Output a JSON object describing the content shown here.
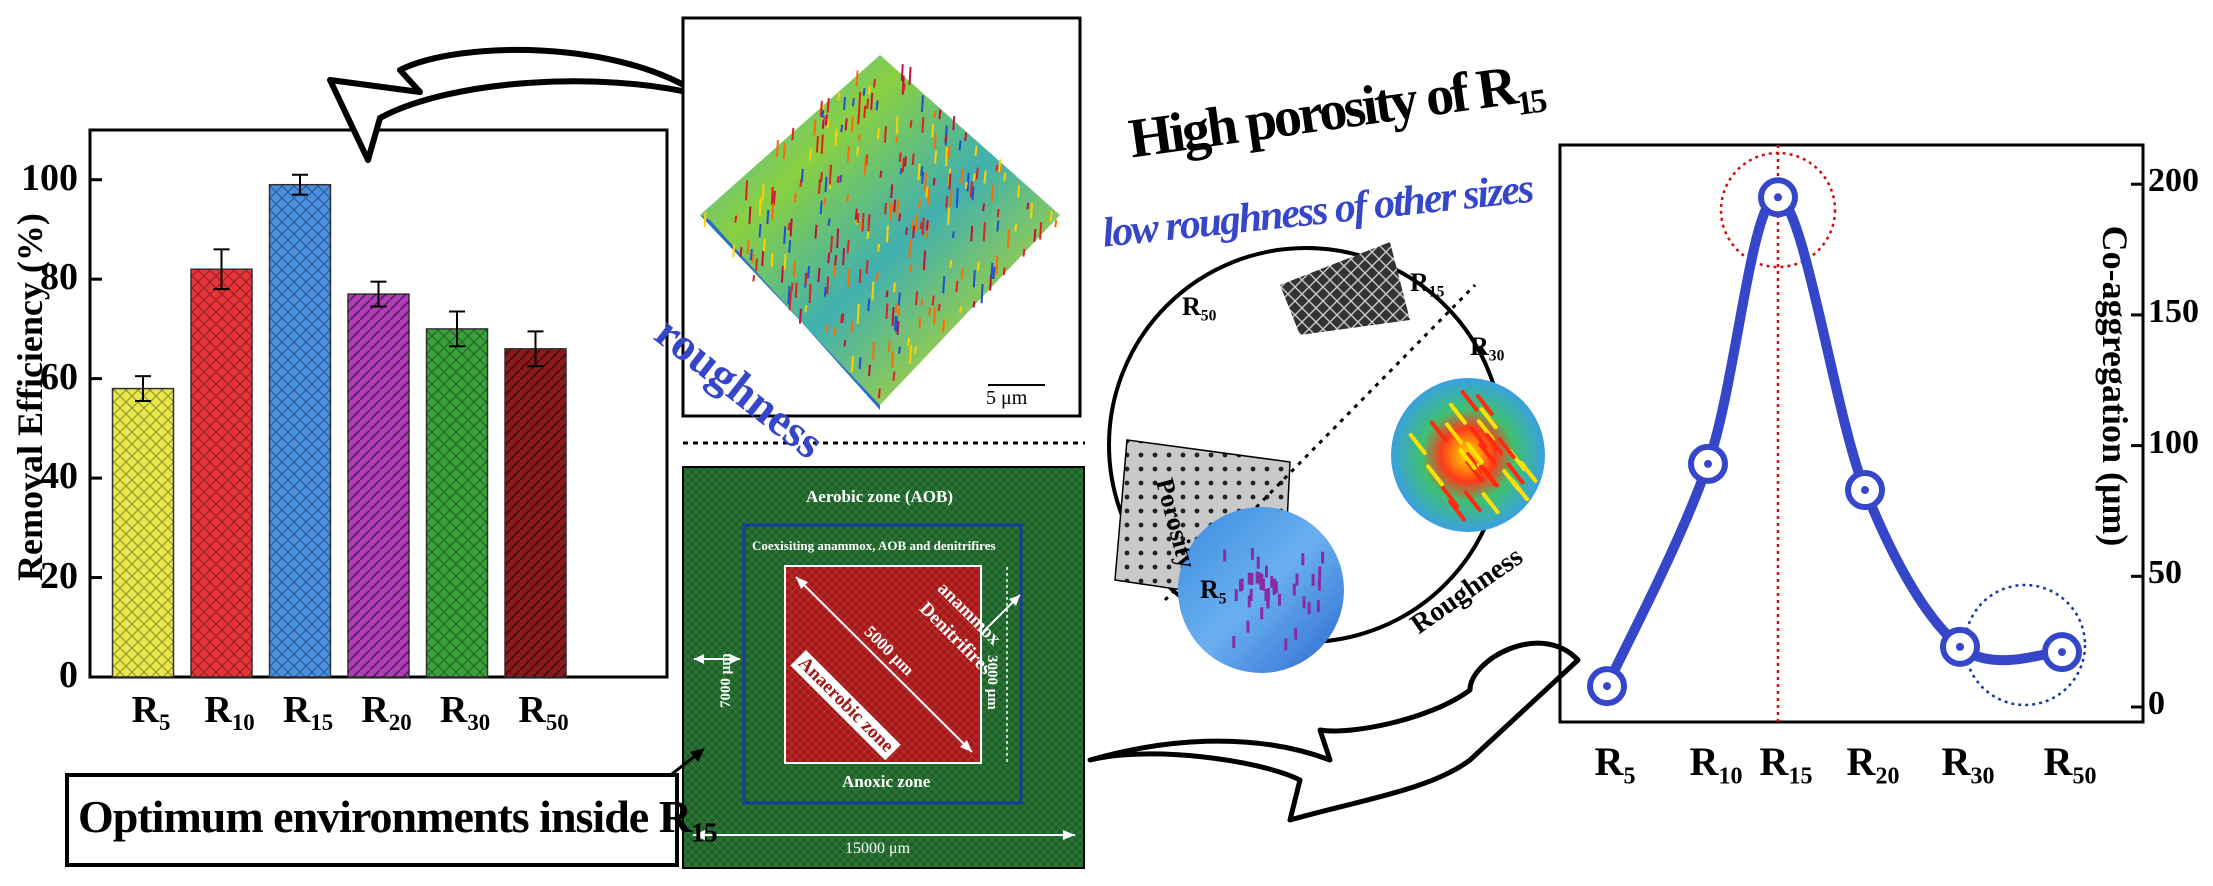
{
  "bar_chart": {
    "ylabel": "Removal Efficiency (%)",
    "y_ticks": [
      "0",
      "20",
      "40",
      "60",
      "80",
      "100"
    ]
  },
  "roughness_panel": {
    "label": "roughness",
    "scale": "5 μm"
  },
  "zones_panel": {
    "aerobic": "Aerobic zone (AOB)",
    "coexisting": "Coexisiting anammox, AOB and denitrifires",
    "anammox": "anammox",
    "denitrifires": "Denitrifires",
    "anaerobic": "Anaerobic zone",
    "anoxic": "Anoxic zone",
    "d5000": "5000 μm",
    "d3000": "3000 μm",
    "d7000": "7000 μm",
    "d15000": "15000 μm"
  },
  "optimum_label": {
    "text": "Optimum environments inside R",
    "sub": "15"
  },
  "circle_panel": {
    "title_high": {
      "text": "High porosity of R",
      "sub": "15"
    },
    "title_low": "low roughness of other sizes",
    "porosity": "Porosity",
    "roughness": "Roughness",
    "r50": {
      "text": "R",
      "sub": "50"
    },
    "r15": {
      "text": "R",
      "sub": "15"
    },
    "r30": {
      "text": "R",
      "sub": "30"
    },
    "r5": {
      "text": "R",
      "sub": "5"
    }
  },
  "line_chart": {
    "ylabel": "Co-aggregation (μm)",
    "y_ticks": [
      "0",
      "50",
      "100",
      "150",
      "200"
    ]
  },
  "chart_data": [
    {
      "type": "bar",
      "categories": [
        {
          "text": "R",
          "sub": "5"
        },
        {
          "text": "R",
          "sub": "10"
        },
        {
          "text": "R",
          "sub": "15"
        },
        {
          "text": "R",
          "sub": "20"
        },
        {
          "text": "R",
          "sub": "30"
        },
        {
          "text": "R",
          "sub": "50"
        }
      ],
      "values": [
        58,
        82,
        99,
        77,
        70,
        66
      ],
      "errors": [
        2.5,
        4,
        2,
        2.5,
        3.5,
        3.5
      ],
      "colors": [
        "#e8e84a",
        "#e8343a",
        "#4a90e2",
        "#b03cb8",
        "#3aa03a",
        "#8a1a1a"
      ],
      "ylabel": "Removal Efficiency (%)",
      "ylim": [
        0,
        110
      ]
    },
    {
      "type": "line",
      "categories": [
        {
          "text": "R",
          "sub": "5"
        },
        {
          "text": "R",
          "sub": "10"
        },
        {
          "text": "R",
          "sub": "15"
        },
        {
          "text": "R",
          "sub": "20"
        },
        {
          "text": "R",
          "sub": "30"
        },
        {
          "text": "R",
          "sub": "50"
        }
      ],
      "values": [
        8,
        93,
        195,
        83,
        23,
        21
      ],
      "ylabel": "Co-aggregation (μm)",
      "ylim": [
        0,
        215
      ]
    }
  ]
}
